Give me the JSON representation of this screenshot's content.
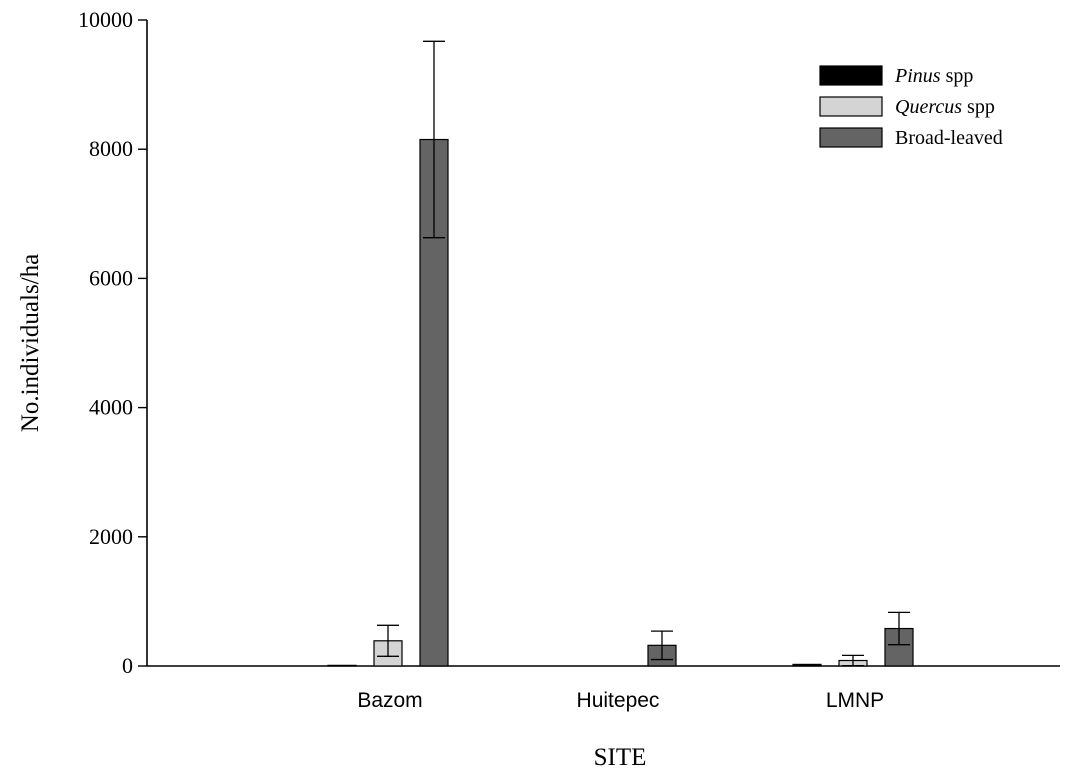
{
  "chart_data": {
    "type": "bar",
    "title": "",
    "xlabel": "SITE",
    "ylabel": "No.individuals/ha",
    "ylim": [
      0,
      10000
    ],
    "yticks": [
      "0",
      "2000",
      "4000",
      "6000",
      "8000",
      "10000"
    ],
    "categories": [
      "Bazom",
      "Huitepec",
      "LMNP"
    ],
    "series": [
      {
        "name": "Pinus spp",
        "name_italic": "Pinus",
        "name_rest": " spp",
        "color": "#000000",
        "values": [
          10,
          0,
          25
        ],
        "errors": [
          0,
          0,
          0
        ]
      },
      {
        "name": "Quercus spp",
        "name_italic": "Quercus",
        "name_rest": " spp",
        "color": "#d4d4d4",
        "values": [
          390,
          0,
          85
        ],
        "errors": [
          240,
          0,
          80
        ]
      },
      {
        "name": "Broad-leaved",
        "name_italic": "",
        "name_rest": "Broad-leaved",
        "color": "#646464",
        "values": [
          8150,
          320,
          580
        ],
        "errors": [
          1520,
          220,
          250
        ]
      }
    ],
    "legend_position": "top-right",
    "grid": false
  }
}
